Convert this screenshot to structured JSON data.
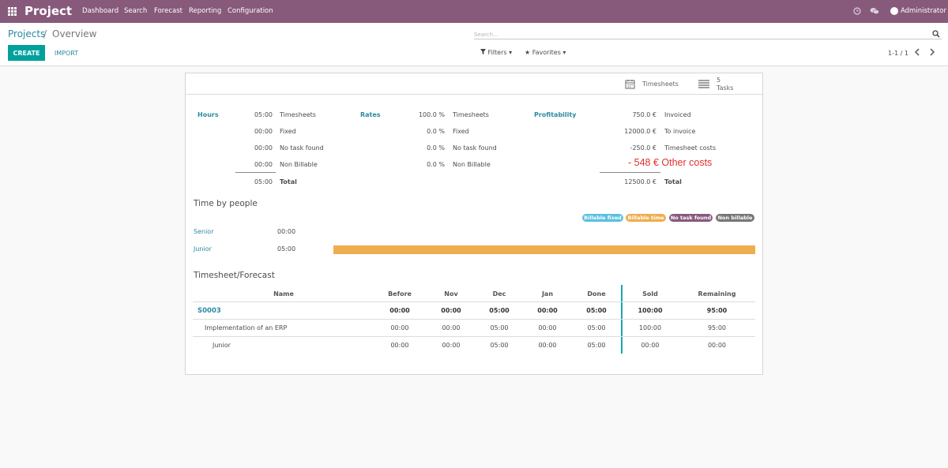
{
  "navbar": {
    "brand": "Project",
    "menu": [
      "Dashboard",
      "Search",
      "Forecast",
      "Reporting",
      "Configuration"
    ],
    "user": "Administrator",
    "color": "#875a7b"
  },
  "breadcrumb": {
    "parent": "Projects",
    "separator": "/",
    "current": "Overview"
  },
  "search": {
    "placeholder": "Search...",
    "value": ""
  },
  "buttons": {
    "create": "CREATE",
    "import": "IMPORT"
  },
  "filters": {
    "filters": "Filters",
    "favorites": "Favorites"
  },
  "pager": "1-1 / 1",
  "stats": {
    "timesheets": "Timesheets",
    "tasks_count": "5",
    "tasks_label": "Tasks"
  },
  "hours": {
    "title": "Hours",
    "rows": [
      {
        "value": "05:00",
        "label": "Timesheets"
      },
      {
        "value": "00:00",
        "label": "Fixed"
      },
      {
        "value": "00:00",
        "label": "No task found"
      },
      {
        "value": "00:00",
        "label": "Non Billable"
      }
    ],
    "total_value": "05:00",
    "total_label": "Total"
  },
  "rates": {
    "title": "Rates",
    "rows": [
      {
        "value": "100.0 %",
        "label": "Timesheets"
      },
      {
        "value": "0.0 %",
        "label": "Fixed"
      },
      {
        "value": "0.0 %",
        "label": "No task found"
      },
      {
        "value": "0.0 %",
        "label": "Non Billable"
      }
    ]
  },
  "profitability": {
    "title": "Profitability",
    "rows": [
      {
        "value": "750.0 €",
        "label": "Invoiced"
      },
      {
        "value": "12000.0 €",
        "label": "To invoice"
      },
      {
        "value": "-250.0 €",
        "label": "Timesheet costs"
      }
    ],
    "total_value": "12500.0 €",
    "total_label": "Total",
    "annotation": "- 548 € Other costs"
  },
  "time_by_people": {
    "title": "Time by people",
    "legend": [
      {
        "label": "Billable fixed",
        "color": "#5bc0de"
      },
      {
        "label": "Billable time",
        "color": "#f0ad4e"
      },
      {
        "label": "No task found",
        "color": "#875a7b"
      },
      {
        "label": "Non billable",
        "color": "#777777"
      }
    ],
    "people": [
      {
        "name": "Senior",
        "hours": "00:00",
        "billable_time_fraction": 0
      },
      {
        "name": "Junior",
        "hours": "05:00",
        "billable_time_fraction": 1
      }
    ]
  },
  "forecast": {
    "title": "Timesheet/Forecast",
    "columns": [
      "Name",
      "Before",
      "Nov",
      "Dec",
      "Jan",
      "Done",
      "Sold",
      "Remaining"
    ],
    "rows": [
      {
        "name": "S0003",
        "values": [
          "00:00",
          "00:00",
          "05:00",
          "00:00",
          "05:00",
          "100:00",
          "95:00"
        ]
      },
      {
        "name": "Implementation of an ERP",
        "values": [
          "00:00",
          "00:00",
          "05:00",
          "00:00",
          "05:00",
          "100:00",
          "95:00"
        ]
      },
      {
        "name": "Junior",
        "values": [
          "00:00",
          "00:00",
          "05:00",
          "00:00",
          "05:00",
          "00:00",
          "00:00"
        ]
      }
    ]
  }
}
